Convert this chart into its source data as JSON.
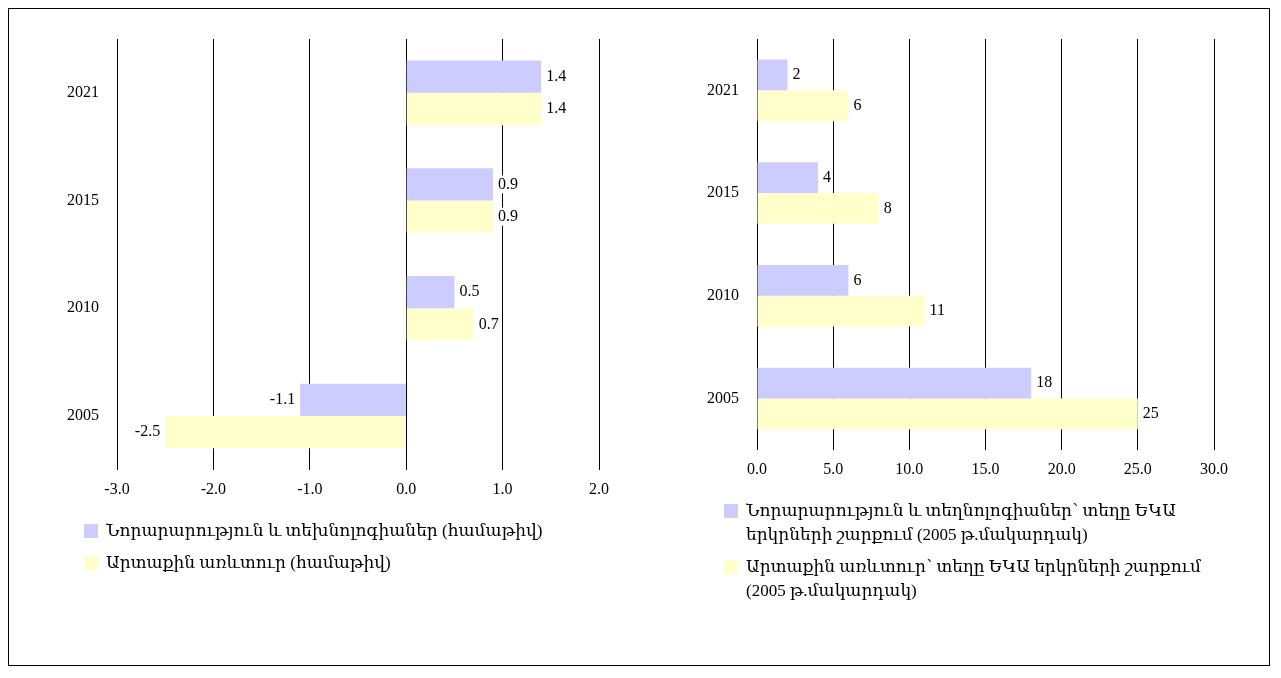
{
  "chart_data": [
    {
      "type": "bar",
      "orientation": "horizontal",
      "categories": [
        "2021",
        "2015",
        "2010",
        "2005"
      ],
      "series": [
        {
          "name": "Նորարարություն և տեխնոլոգիաներ (համաթիվ)",
          "color": "#ccccff",
          "values": [
            1.4,
            0.9,
            0.5,
            -1.1
          ]
        },
        {
          "name": "Արտաքին առևտուր (համաթիվ)",
          "color": "#ffffcc",
          "values": [
            1.4,
            0.9,
            0.7,
            -2.5
          ]
        }
      ],
      "xlim": [
        -3,
        2
      ],
      "xticks": [
        {
          "value": -3,
          "label": "-3.0"
        },
        {
          "value": -2,
          "label": "-2.0"
        },
        {
          "value": -1,
          "label": "-1.0"
        },
        {
          "value": 0,
          "label": "0.0"
        },
        {
          "value": 1,
          "label": "1.0"
        },
        {
          "value": 2,
          "label": "2.0"
        }
      ],
      "grid": "x",
      "legend": "bottom left",
      "data_labels": true
    },
    {
      "type": "bar",
      "orientation": "horizontal",
      "categories": [
        "2021",
        "2015",
        "2010",
        "2005"
      ],
      "series": [
        {
          "name": "Նորարարություն և տեղնոլոգիաներ՝ տեղը ԵԿԱ երկրների շարքում (2005 թ.մակարդակ)",
          "color": "#ccccff",
          "values": [
            2,
            4,
            6,
            18
          ]
        },
        {
          "name": "Արտաքին առևտուր՝ տեղը ԵԿԱ երկրների շարքում (2005 թ.մակարդակ)",
          "color": "#ffffcc",
          "values": [
            6,
            8,
            11,
            25
          ]
        }
      ],
      "xlim": [
        0,
        30
      ],
      "xticks": [
        {
          "value": 0,
          "label": "0.0"
        },
        {
          "value": 5,
          "label": "5.0"
        },
        {
          "value": 10,
          "label": "10.0"
        },
        {
          "value": 15,
          "label": "15.0"
        },
        {
          "value": 20,
          "label": "20.0"
        },
        {
          "value": 25,
          "label": "25.0"
        },
        {
          "value": 30,
          "label": "30.0"
        }
      ],
      "grid": "x",
      "legend": "bottom left",
      "data_labels": true
    }
  ]
}
